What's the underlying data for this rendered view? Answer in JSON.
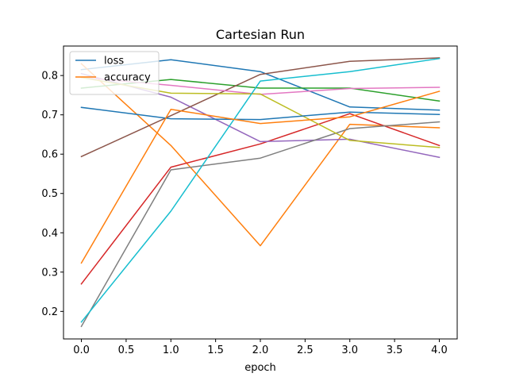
{
  "chart_data": {
    "type": "line",
    "title": "Cartesian Run",
    "xlabel": "epoch",
    "ylabel": "",
    "xlim": [
      -0.2,
      4.2
    ],
    "ylim": [
      0.13,
      0.875
    ],
    "x_ticks": [
      0.0,
      0.5,
      1.0,
      1.5,
      2.0,
      2.5,
      3.0,
      3.5,
      4.0
    ],
    "x_tick_labels": [
      "0.0",
      "0.5",
      "1.0",
      "1.5",
      "2.0",
      "2.5",
      "3.0",
      "3.5",
      "4.0"
    ],
    "y_ticks": [
      0.2,
      0.3,
      0.4,
      0.5,
      0.6,
      0.7,
      0.8
    ],
    "y_tick_labels": [
      "0.2",
      "0.3",
      "0.4",
      "0.5",
      "0.6",
      "0.7",
      "0.8"
    ],
    "grid": false,
    "legend_placement": "top-left",
    "x": [
      0,
      1,
      2,
      3,
      4
    ],
    "series": [
      {
        "name": "loss",
        "color": "#1f77b4",
        "values": [
          0.815,
          0.84,
          0.81,
          0.72,
          0.712
        ]
      },
      {
        "name": "accuracy",
        "color": "#ff7f0e",
        "values": [
          0.83,
          0.622,
          0.367,
          0.676,
          0.667
        ]
      },
      {
        "color": "#2ca02c",
        "values": [
          0.768,
          0.79,
          0.768,
          0.768,
          0.735
        ]
      },
      {
        "color": "#d62728",
        "values": [
          0.27,
          0.567,
          0.626,
          0.703,
          0.622
        ]
      },
      {
        "color": "#9467bd",
        "values": [
          0.805,
          0.745,
          0.632,
          0.638,
          0.592
        ]
      },
      {
        "color": "#8c564b",
        "values": [
          0.594,
          0.698,
          0.803,
          0.836,
          0.845
        ]
      },
      {
        "color": "#e377c2",
        "values": [
          0.795,
          0.775,
          0.752,
          0.767,
          0.77
        ]
      },
      {
        "color": "#7f7f7f",
        "values": [
          0.162,
          0.56,
          0.59,
          0.665,
          0.682
        ]
      },
      {
        "color": "#bcbd22",
        "values": [
          0.795,
          0.755,
          0.753,
          0.635,
          0.617
        ]
      },
      {
        "color": "#17becf",
        "values": [
          0.173,
          0.455,
          0.786,
          0.81,
          0.843
        ]
      },
      {
        "color": "#1f77b4",
        "values": [
          0.719,
          0.69,
          0.688,
          0.707,
          0.701
        ]
      },
      {
        "color": "#ff7f0e",
        "values": [
          0.323,
          0.714,
          0.678,
          0.695,
          0.76
        ]
      }
    ]
  }
}
